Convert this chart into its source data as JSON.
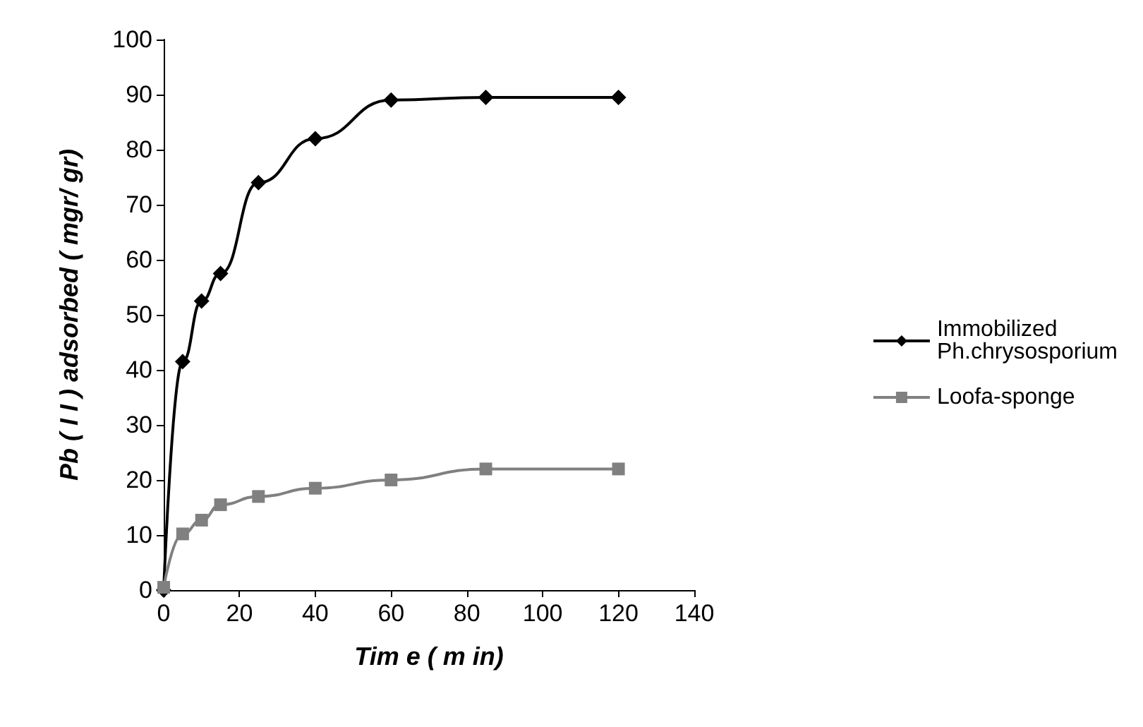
{
  "chart_data": {
    "type": "line",
    "xlabel": "Tim e ( m in)",
    "ylabel": "Pb ( I I ) adsorbed ( mgr/ gr)",
    "x": [
      0,
      5,
      10,
      15,
      25,
      40,
      60,
      85,
      120
    ],
    "series": [
      {
        "name": "Immobilized\nPh.chrysosporium",
        "color": "#000000",
        "marker": "diamond",
        "values": [
          0,
          41.5,
          52.5,
          57.5,
          74,
          82,
          89,
          89.5,
          89.5
        ]
      },
      {
        "name": "Loofa-sponge",
        "color": "#808080",
        "marker": "square",
        "values": [
          0.5,
          10.2,
          12.7,
          15.5,
          17,
          18.5,
          20,
          22,
          22
        ]
      }
    ],
    "xlim": [
      0,
      140
    ],
    "xticks": [
      0,
      20,
      40,
      60,
      80,
      100,
      120,
      140
    ],
    "ylim": [
      0,
      100
    ],
    "yticks": [
      0,
      10,
      20,
      30,
      40,
      50,
      60,
      70,
      80,
      90,
      100
    ],
    "grid": false,
    "legend": "right",
    "line_style": "solid"
  }
}
